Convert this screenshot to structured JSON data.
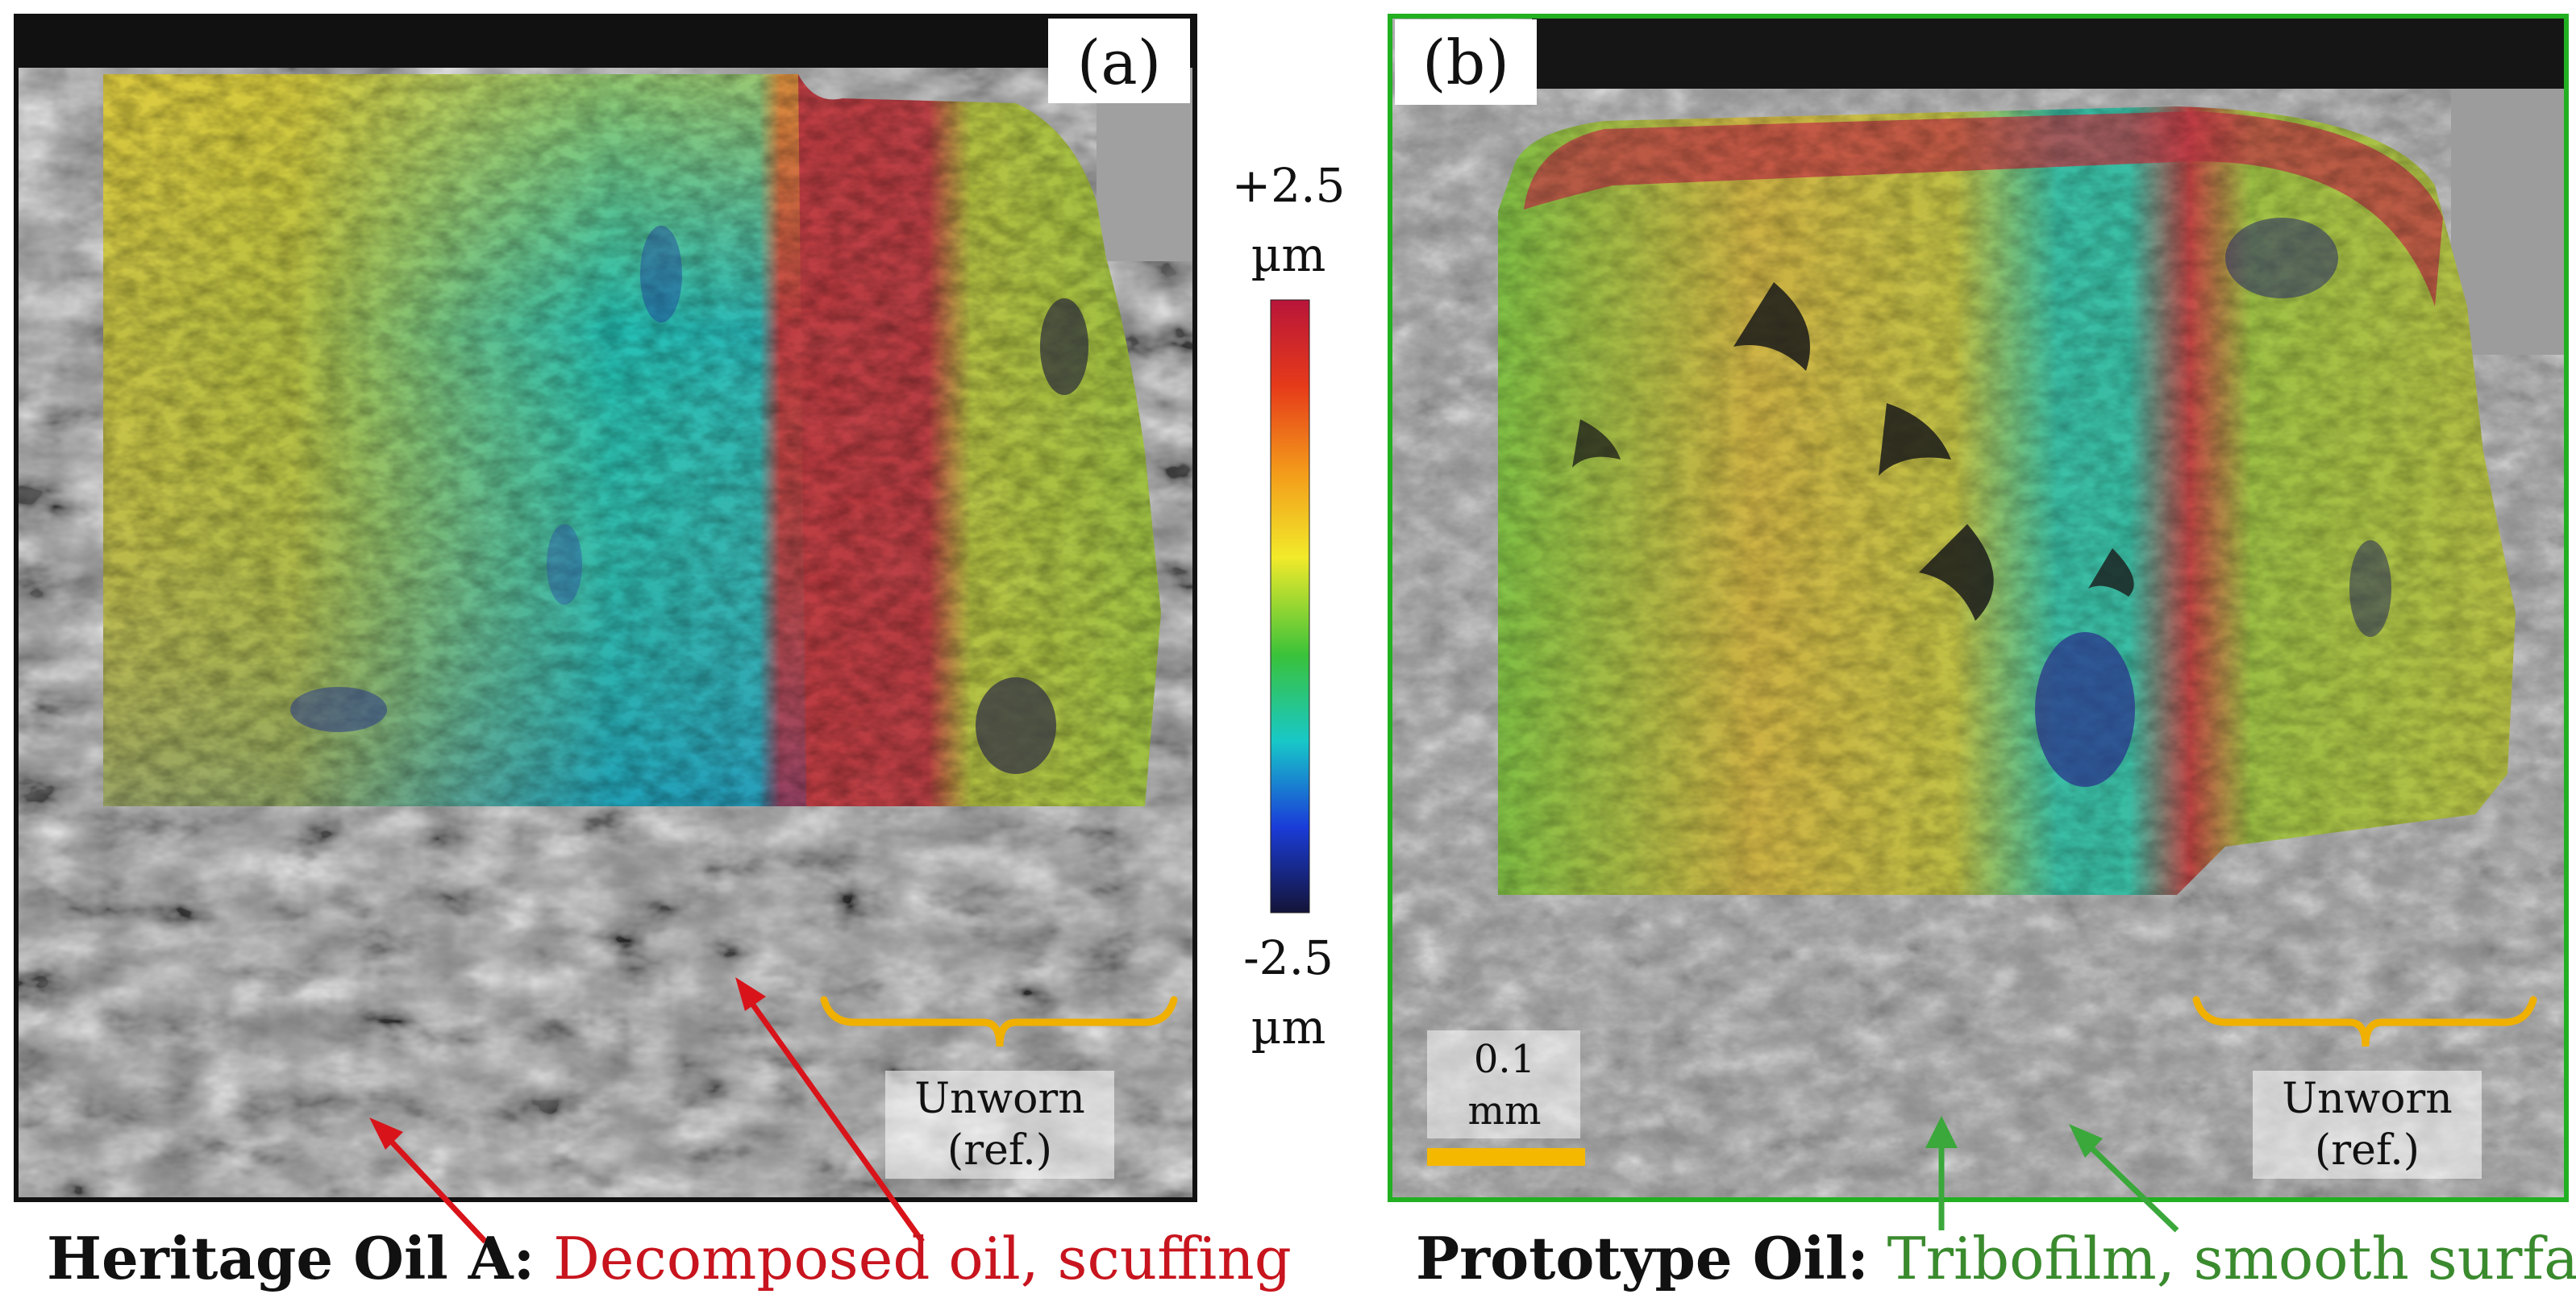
{
  "panels": [
    {
      "letter": "(a)",
      "unworn_label_line1": "Unworn",
      "unworn_label_line2": "(ref.)",
      "caption_bold": "Heritage Oil A:",
      "caption_rest": " Decomposed oil, scuffing",
      "caption_color": "#c8141e",
      "frame_color": "#111111",
      "arrow_color": "#d8141a"
    },
    {
      "letter": "(b)",
      "unworn_label_line1": "Unworn",
      "unworn_label_line2": "(ref.)",
      "caption_bold": "Prototype Oil:",
      "caption_rest": " Tribofilm, smooth surface",
      "caption_color": "#3a8a2e",
      "frame_color": "#22b022",
      "arrow_color": "#3aa83a",
      "scale_bar_line1": "0.1",
      "scale_bar_line2": "mm"
    }
  ],
  "colorbar": {
    "max_line1": "+2.5",
    "max_line2": "µm",
    "min_line1": "-2.5",
    "min_line2": "µm",
    "stops": [
      "#b8153a",
      "#e63a1a",
      "#f39a1a",
      "#f2ea2a",
      "#3ac23a",
      "#18c8c8",
      "#1a3cd8",
      "#141438"
    ]
  },
  "bracket_color": "#f0b000",
  "scale_bar_color": "#f5b800"
}
